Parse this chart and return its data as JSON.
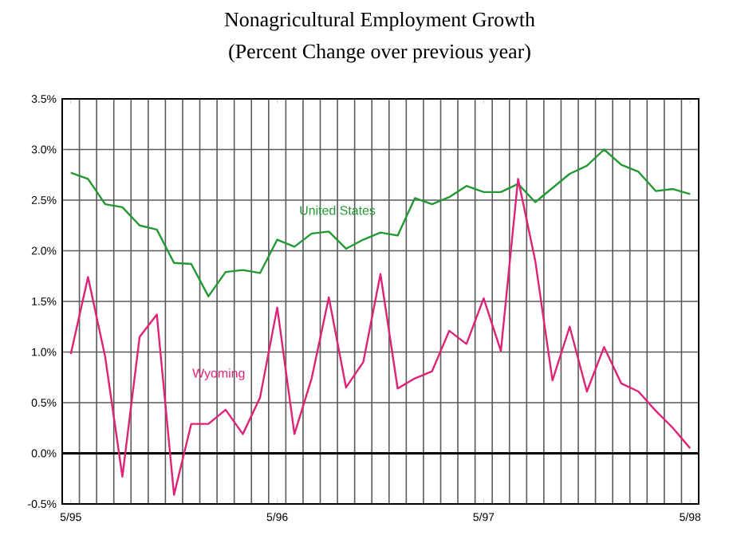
{
  "chart_data": {
    "type": "line",
    "title": "Nonagricultural Employment Growth",
    "subtitle": "(Percent Change over previous year)",
    "categories": [
      "5/95",
      null,
      null,
      null,
      null,
      null,
      null,
      null,
      null,
      null,
      null,
      null,
      "5/96",
      null,
      null,
      null,
      null,
      null,
      null,
      null,
      null,
      null,
      null,
      null,
      "5/97",
      null,
      null,
      null,
      null,
      null,
      null,
      null,
      null,
      null,
      null,
      null,
      "5/98"
    ],
    "series": [
      {
        "name": "United States",
        "color": "#229933",
        "values": [
          2.77,
          2.71,
          2.46,
          2.43,
          2.25,
          2.21,
          1.88,
          1.87,
          1.55,
          1.79,
          1.81,
          1.78,
          2.11,
          2.04,
          2.17,
          2.19,
          2.02,
          2.11,
          2.18,
          2.15,
          2.52,
          2.46,
          2.53,
          2.64,
          2.58,
          2.58,
          2.66,
          2.48,
          2.62,
          2.76,
          2.84,
          3.0,
          2.85,
          2.78,
          2.59,
          2.61,
          2.56
        ]
      },
      {
        "name": "Wyoming",
        "color": "#dd2277",
        "values": [
          0.98,
          1.74,
          0.95,
          -0.23,
          1.15,
          1.37,
          -0.41,
          0.29,
          0.29,
          0.43,
          0.19,
          0.55,
          1.44,
          0.19,
          0.74,
          1.54,
          0.65,
          0.9,
          1.77,
          0.64,
          0.74,
          0.81,
          1.21,
          1.08,
          1.53,
          1.01,
          2.71,
          1.9,
          0.72,
          1.25,
          0.61,
          1.05,
          0.69,
          0.61,
          0.42,
          0.25,
          0.05
        ]
      }
    ],
    "ylim": [
      -0.5,
      3.5
    ],
    "yticks": [
      {
        "value": -0.5,
        "label": "-0.5%"
      },
      {
        "value": 0,
        "label": "0.0%"
      },
      {
        "value": 0.5,
        "label": "0.5%"
      },
      {
        "value": 1,
        "label": "1.0%"
      },
      {
        "value": 1.5,
        "label": "1.5%"
      },
      {
        "value": 2,
        "label": "2.0%"
      },
      {
        "value": 2.5,
        "label": "2.5%"
      },
      {
        "value": 3,
        "label": "3.0%"
      },
      {
        "value": 3.5,
        "label": "3.5%"
      }
    ],
    "ref_lines": [
      {
        "axis": "y",
        "value": 0,
        "color": "#000000"
      }
    ],
    "grid": true,
    "legend": false,
    "marker": "none",
    "line_style": "solid"
  }
}
